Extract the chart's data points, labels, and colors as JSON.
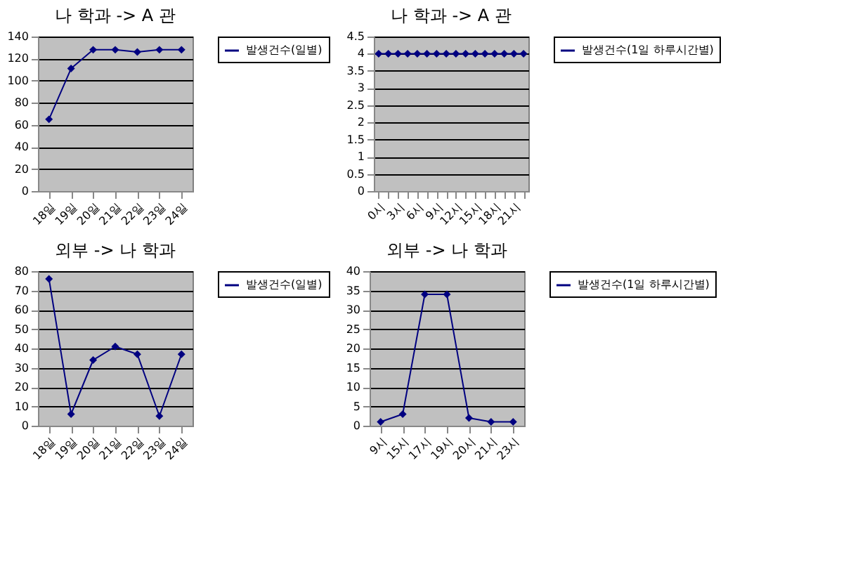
{
  "chart_data": [
    {
      "type": "line",
      "title": "나 학과 -> A 관",
      "categories": [
        "18일",
        "19일",
        "20일",
        "21일",
        "22일",
        "23일",
        "24일"
      ],
      "series": [
        {
          "name": "발생건수(일별)",
          "color": "#000080",
          "values": [
            65,
            111,
            128,
            128,
            126,
            128,
            128
          ]
        }
      ],
      "ylim": [
        0,
        140
      ],
      "yticks": [
        0,
        20,
        40,
        60,
        80,
        100,
        120,
        140
      ],
      "grid": "y",
      "legend": "right",
      "marker": "diamond"
    },
    {
      "type": "line",
      "title": "나 학과 -> A 관",
      "categories": [
        "0시",
        null,
        "3시",
        null,
        "6시",
        null,
        "9시",
        null,
        "12시",
        null,
        "15시",
        null,
        "18시",
        null,
        "21시",
        null
      ],
      "series": [
        {
          "name": "발생건수(1일 하루시간별)",
          "color": "#000080",
          "values": [
            4,
            4,
            4,
            4,
            4,
            4,
            4,
            4,
            4,
            4,
            4,
            4,
            4,
            4,
            4,
            4
          ]
        }
      ],
      "ylim": [
        0,
        4.5
      ],
      "yticks": [
        0,
        0.5,
        1,
        1.5,
        2,
        2.5,
        3,
        3.5,
        4,
        4.5
      ],
      "grid": "y",
      "legend": "right",
      "marker": "diamond"
    },
    {
      "type": "line",
      "title": "외부 -> 나 학과",
      "categories": [
        "18일",
        "19일",
        "20일",
        "21일",
        "22일",
        "23일",
        "24일"
      ],
      "series": [
        {
          "name": "발생건수(일별)",
          "color": "#000080",
          "values": [
            76,
            6,
            34,
            41,
            37,
            5,
            37
          ]
        }
      ],
      "ylim": [
        0,
        80
      ],
      "yticks": [
        0,
        10,
        20,
        30,
        40,
        50,
        60,
        70,
        80
      ],
      "grid": "y",
      "legend": "right",
      "marker": "diamond"
    },
    {
      "type": "line",
      "title": "외부 -> 나 학과",
      "categories": [
        "9시",
        "15시",
        "17시",
        "19시",
        "20시",
        "21시",
        "23시"
      ],
      "series": [
        {
          "name": "발생건수(1일 하루시간별)",
          "color": "#000080",
          "values": [
            1,
            3,
            34,
            34,
            2,
            1,
            1
          ]
        }
      ],
      "ylim": [
        0,
        40
      ],
      "yticks": [
        0,
        5,
        10,
        15,
        20,
        25,
        30,
        35,
        40
      ],
      "grid": "y",
      "legend": "right",
      "marker": "diamond"
    }
  ]
}
